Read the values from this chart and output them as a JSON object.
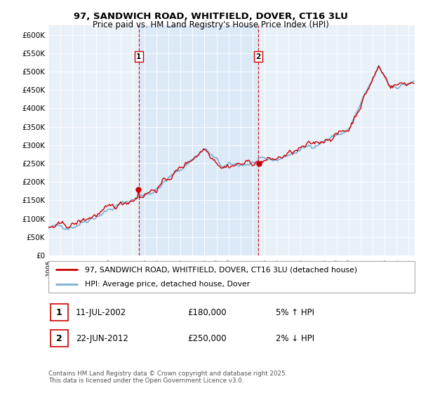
{
  "title_line1": "97, SANDWICH ROAD, WHITFIELD, DOVER, CT16 3LU",
  "title_line2": "Price paid vs. HM Land Registry's House Price Index (HPI)",
  "ylim": [
    0,
    625000
  ],
  "yticks": [
    0,
    50000,
    100000,
    150000,
    200000,
    250000,
    300000,
    350000,
    400000,
    450000,
    500000,
    550000,
    600000
  ],
  "ytick_labels": [
    "£0",
    "£50K",
    "£100K",
    "£150K",
    "£200K",
    "£250K",
    "£300K",
    "£350K",
    "£400K",
    "£450K",
    "£500K",
    "£550K",
    "£600K"
  ],
  "hpi_color": "#7bafd4",
  "price_color": "#cc0000",
  "vline_color": "#cc0000",
  "highlight_color": "#dce9f7",
  "background_plot": "#e8f0f8",
  "transaction1_date": 2002.53,
  "transaction2_date": 2012.47,
  "legend_price_label": "97, SANDWICH ROAD, WHITFIELD, DOVER, CT16 3LU (detached house)",
  "legend_hpi_label": "HPI: Average price, detached house, Dover",
  "footnote": "Contains HM Land Registry data © Crown copyright and database right 2025.\nThis data is licensed under the Open Government Licence v3.0.",
  "xmin": 1995.0,
  "xmax": 2025.5,
  "seed": 42
}
